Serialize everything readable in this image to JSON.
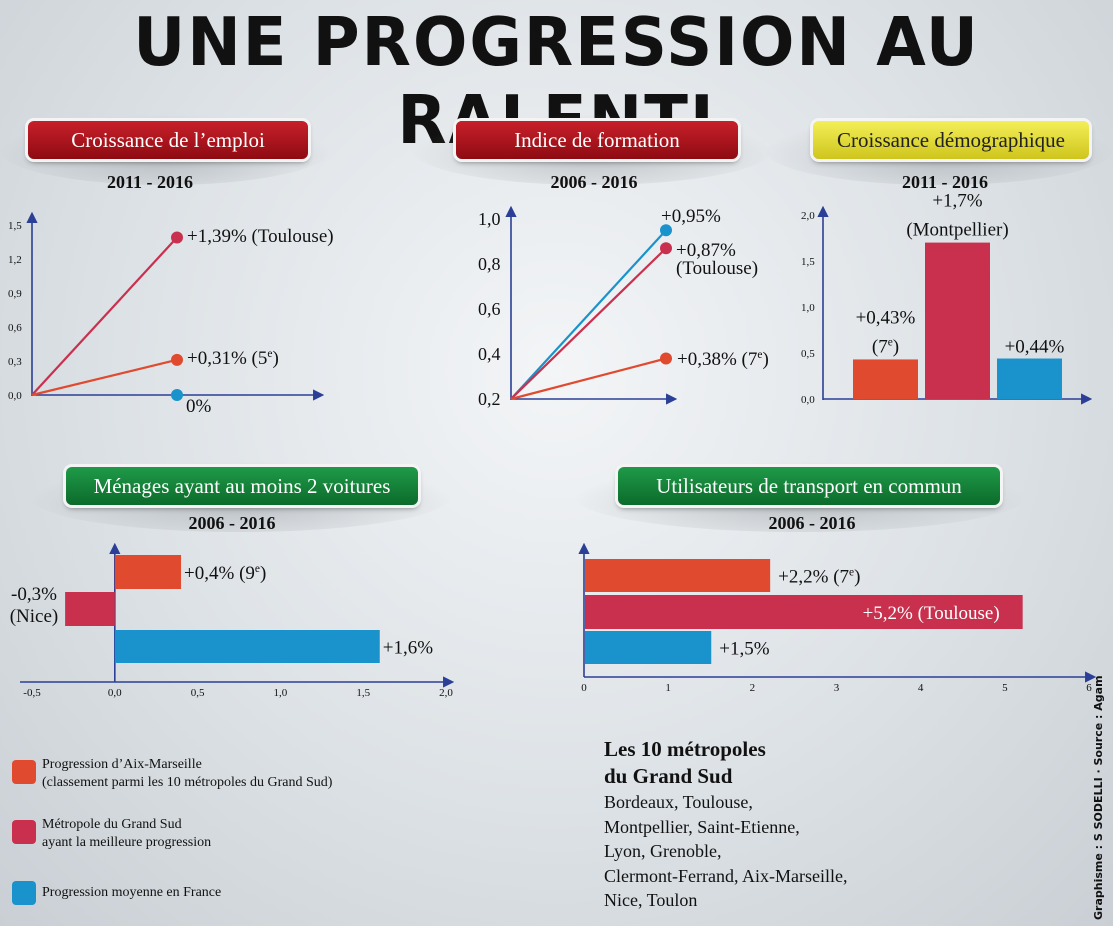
{
  "page": {
    "title": "UNE PROGRESSION AU RALENTI",
    "credit": "Graphisme : S SODELLI · Source : Agam"
  },
  "colors": {
    "aix": "#e04a2e",
    "best": "#c9304e",
    "france": "#1a93cc"
  },
  "legend": [
    {
      "key": "aix",
      "line1": "Progression d’Aix-Marseille",
      "line2": "(classement parmi les 10 métropoles du Grand Sud)"
    },
    {
      "key": "best",
      "line1": "Métropole du Grand Sud",
      "line2": "ayant la meilleure progression"
    },
    {
      "key": "france",
      "line1": "Progression moyenne en France",
      "line2": ""
    }
  ],
  "metropoles": {
    "heading1": "Les 10 métropoles",
    "heading2": "du Grand Sud",
    "lines": [
      "Bordeaux, Toulouse,",
      "Montpellier, Saint-Etienne,",
      "Lyon, Grenoble,",
      "Clermont-Ferrand, Aix-Marseille,",
      "Nice, Toulon"
    ]
  },
  "chart_data": [
    {
      "id": "emploi",
      "type": "line",
      "title": "Croissance de l’emploi",
      "subtitle": "2011 - 2016",
      "yticks": [
        "1,5",
        "1,2",
        "0,9",
        "0,6",
        "0,3",
        "0,0"
      ],
      "ylim": [
        0,
        1.5
      ],
      "series": [
        {
          "key": "best",
          "values": [
            0,
            1.39
          ],
          "label": "+1,39% (Toulouse)"
        },
        {
          "key": "aix",
          "values": [
            0,
            0.31
          ],
          "label": "+0,31% (5e)"
        },
        {
          "key": "france",
          "values": [
            0,
            0
          ],
          "label": "0%"
        }
      ]
    },
    {
      "id": "formation",
      "type": "line",
      "title": "Indice de formation",
      "subtitle": "2006 - 2016",
      "yticks": [
        "1,0",
        "0,8",
        "0,6",
        "0,4",
        "0,2"
      ],
      "ylim": [
        0.2,
        1.0
      ],
      "series": [
        {
          "key": "france",
          "values": [
            0.2,
            0.95
          ],
          "label": "+0,95%"
        },
        {
          "key": "best",
          "values": [
            0.2,
            0.87
          ],
          "label": "+0,87%",
          "label2": "(Toulouse)"
        },
        {
          "key": "aix",
          "values": [
            0.2,
            0.38
          ],
          "label": "+0,38% (7e)"
        }
      ]
    },
    {
      "id": "demo",
      "type": "bar",
      "title": "Croissance démographique",
      "subtitle": "2011 - 2016",
      "yticks": [
        "2,0",
        "1,5",
        "1,0",
        "0,5",
        "0,0"
      ],
      "ylim": [
        0,
        2.0
      ],
      "bars": [
        {
          "key": "aix",
          "value": 0.43,
          "label": "+0,43%",
          "label2": "(7e)"
        },
        {
          "key": "best",
          "value": 1.7,
          "label": "+1,7%",
          "label2": "(Montpellier)"
        },
        {
          "key": "france",
          "value": 0.44,
          "label": "+0,44%",
          "label2": ""
        }
      ]
    },
    {
      "id": "voitures",
      "type": "bar",
      "orientation": "horizontal",
      "title": "Ménages ayant au moins 2 voitures",
      "subtitle": "2006 - 2016",
      "xticks": [
        "-0,5",
        "0,0",
        "0,5",
        "1,0",
        "1,5",
        "2,0"
      ],
      "xlim": [
        -0.5,
        2.0
      ],
      "bars": [
        {
          "key": "aix",
          "value": 0.4,
          "label": "+0,4% (9e)",
          "label2": ""
        },
        {
          "key": "best",
          "value": -0.3,
          "label": "-0,3%",
          "label2": "(Nice)"
        },
        {
          "key": "france",
          "value": 1.6,
          "label": "+1,6%",
          "label2": ""
        }
      ]
    },
    {
      "id": "transport",
      "type": "bar",
      "orientation": "horizontal",
      "title": "Utilisateurs de transport en commun",
      "subtitle": "2006 - 2016",
      "xticks": [
        "0",
        "1",
        "2",
        "3",
        "4",
        "5",
        "6"
      ],
      "xlim": [
        0,
        6
      ],
      "bars": [
        {
          "key": "aix",
          "value": 2.2,
          "label": "+2,2% (7e)"
        },
        {
          "key": "best",
          "value": 5.2,
          "label": "+5,2% (Toulouse)"
        },
        {
          "key": "france",
          "value": 1.5,
          "label": "+1,5%"
        }
      ]
    }
  ]
}
